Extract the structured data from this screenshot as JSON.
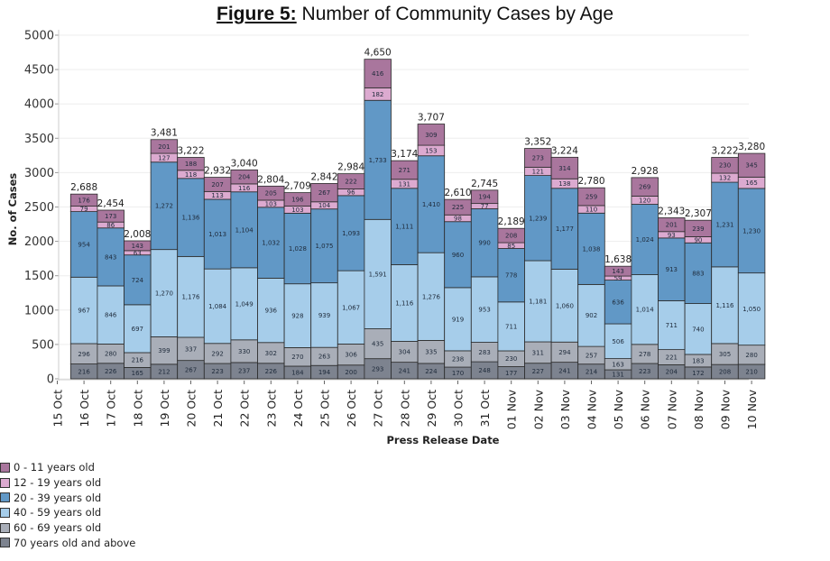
{
  "chart_data": {
    "type": "bar",
    "stacked": true,
    "title_bold": "Figure 5:",
    "title_rest": " Number of Community Cases by Age",
    "xlabel": "Press Release Date",
    "ylabel": "No. of Cases",
    "ylim": [
      0,
      5000
    ],
    "yticks": [
      0,
      500,
      1000,
      1500,
      2000,
      2500,
      3000,
      3500,
      4000,
      4500,
      5000
    ],
    "grid": true,
    "legend_position": "bottom-left",
    "categories": [
      "15 Oct",
      "16 Oct",
      "17 Oct",
      "18 Oct",
      "19 Oct",
      "20 Oct",
      "21 Oct",
      "22 Oct",
      "23 Oct",
      "24 Oct",
      "25 Oct",
      "26 Oct",
      "27 Oct",
      "28 Oct",
      "29 Oct",
      "30 Oct",
      "31 Oct",
      "01 Nov",
      "02 Nov",
      "03 Nov",
      "04 Nov",
      "05 Nov",
      "06 Nov",
      "07 Nov",
      "08 Nov",
      "09 Nov",
      "10 Nov"
    ],
    "series": [
      {
        "name": "70 years old and above",
        "color": "#7d838f",
        "values": [
          null,
          216,
          226,
          165,
          212,
          267,
          223,
          237,
          226,
          184,
          194,
          200,
          293,
          241,
          224,
          170,
          248,
          177,
          227,
          241,
          214,
          131,
          223,
          204,
          172,
          208,
          210
        ]
      },
      {
        "name": "60 - 69 years old",
        "color": "#a9aeb8",
        "values": [
          null,
          296,
          280,
          216,
          399,
          337,
          292,
          330,
          302,
          270,
          263,
          306,
          435,
          304,
          335,
          238,
          283,
          230,
          311,
          294,
          257,
          163,
          278,
          221,
          183,
          305,
          280
        ]
      },
      {
        "name": "40 - 59 years old",
        "color": "#a6cdea",
        "values": [
          null,
          967,
          846,
          697,
          1270,
          1176,
          1084,
          1049,
          936,
          928,
          939,
          1067,
          1591,
          1116,
          1276,
          919,
          953,
          711,
          1181,
          1060,
          902,
          506,
          1014,
          711,
          740,
          1116,
          1050
        ]
      },
      {
        "name": "20 - 39 years old",
        "color": "#6198c6",
        "values": [
          null,
          954,
          843,
          724,
          1272,
          1136,
          1013,
          1104,
          1032,
          1028,
          1075,
          1093,
          1733,
          1111,
          1410,
          960,
          990,
          778,
          1239,
          1177,
          1038,
          636,
          1024,
          913,
          883,
          1231,
          1230
        ]
      },
      {
        "name": "12 - 19 years old",
        "color": "#dcaad0",
        "values": [
          null,
          79,
          86,
          63,
          127,
          118,
          113,
          116,
          103,
          103,
          104,
          96,
          182,
          131,
          153,
          98,
          77,
          85,
          121,
          138,
          110,
          59,
          120,
          93,
          90,
          132,
          165
        ]
      },
      {
        "name": "0 - 11 years old",
        "color": "#a9769d",
        "values": [
          null,
          176,
          173,
          143,
          201,
          188,
          207,
          204,
          205,
          196,
          267,
          222,
          416,
          271,
          309,
          225,
          194,
          208,
          273,
          314,
          259,
          143,
          269,
          201,
          239,
          230,
          345
        ]
      }
    ],
    "totals": [
      null,
      2688,
      2454,
      2008,
      3481,
      3222,
      2932,
      3040,
      2804,
      2709,
      2842,
      2984,
      4650,
      3174,
      3707,
      2610,
      2745,
      2189,
      3352,
      3224,
      2780,
      1638,
      2928,
      2343,
      2307,
      3222,
      3280
    ],
    "legend_order": [
      "0 - 11 years old",
      "12 - 19 years old",
      "20 - 39 years old",
      "40 - 59 years old",
      "60 - 69 years old",
      "70 years old and above"
    ]
  }
}
